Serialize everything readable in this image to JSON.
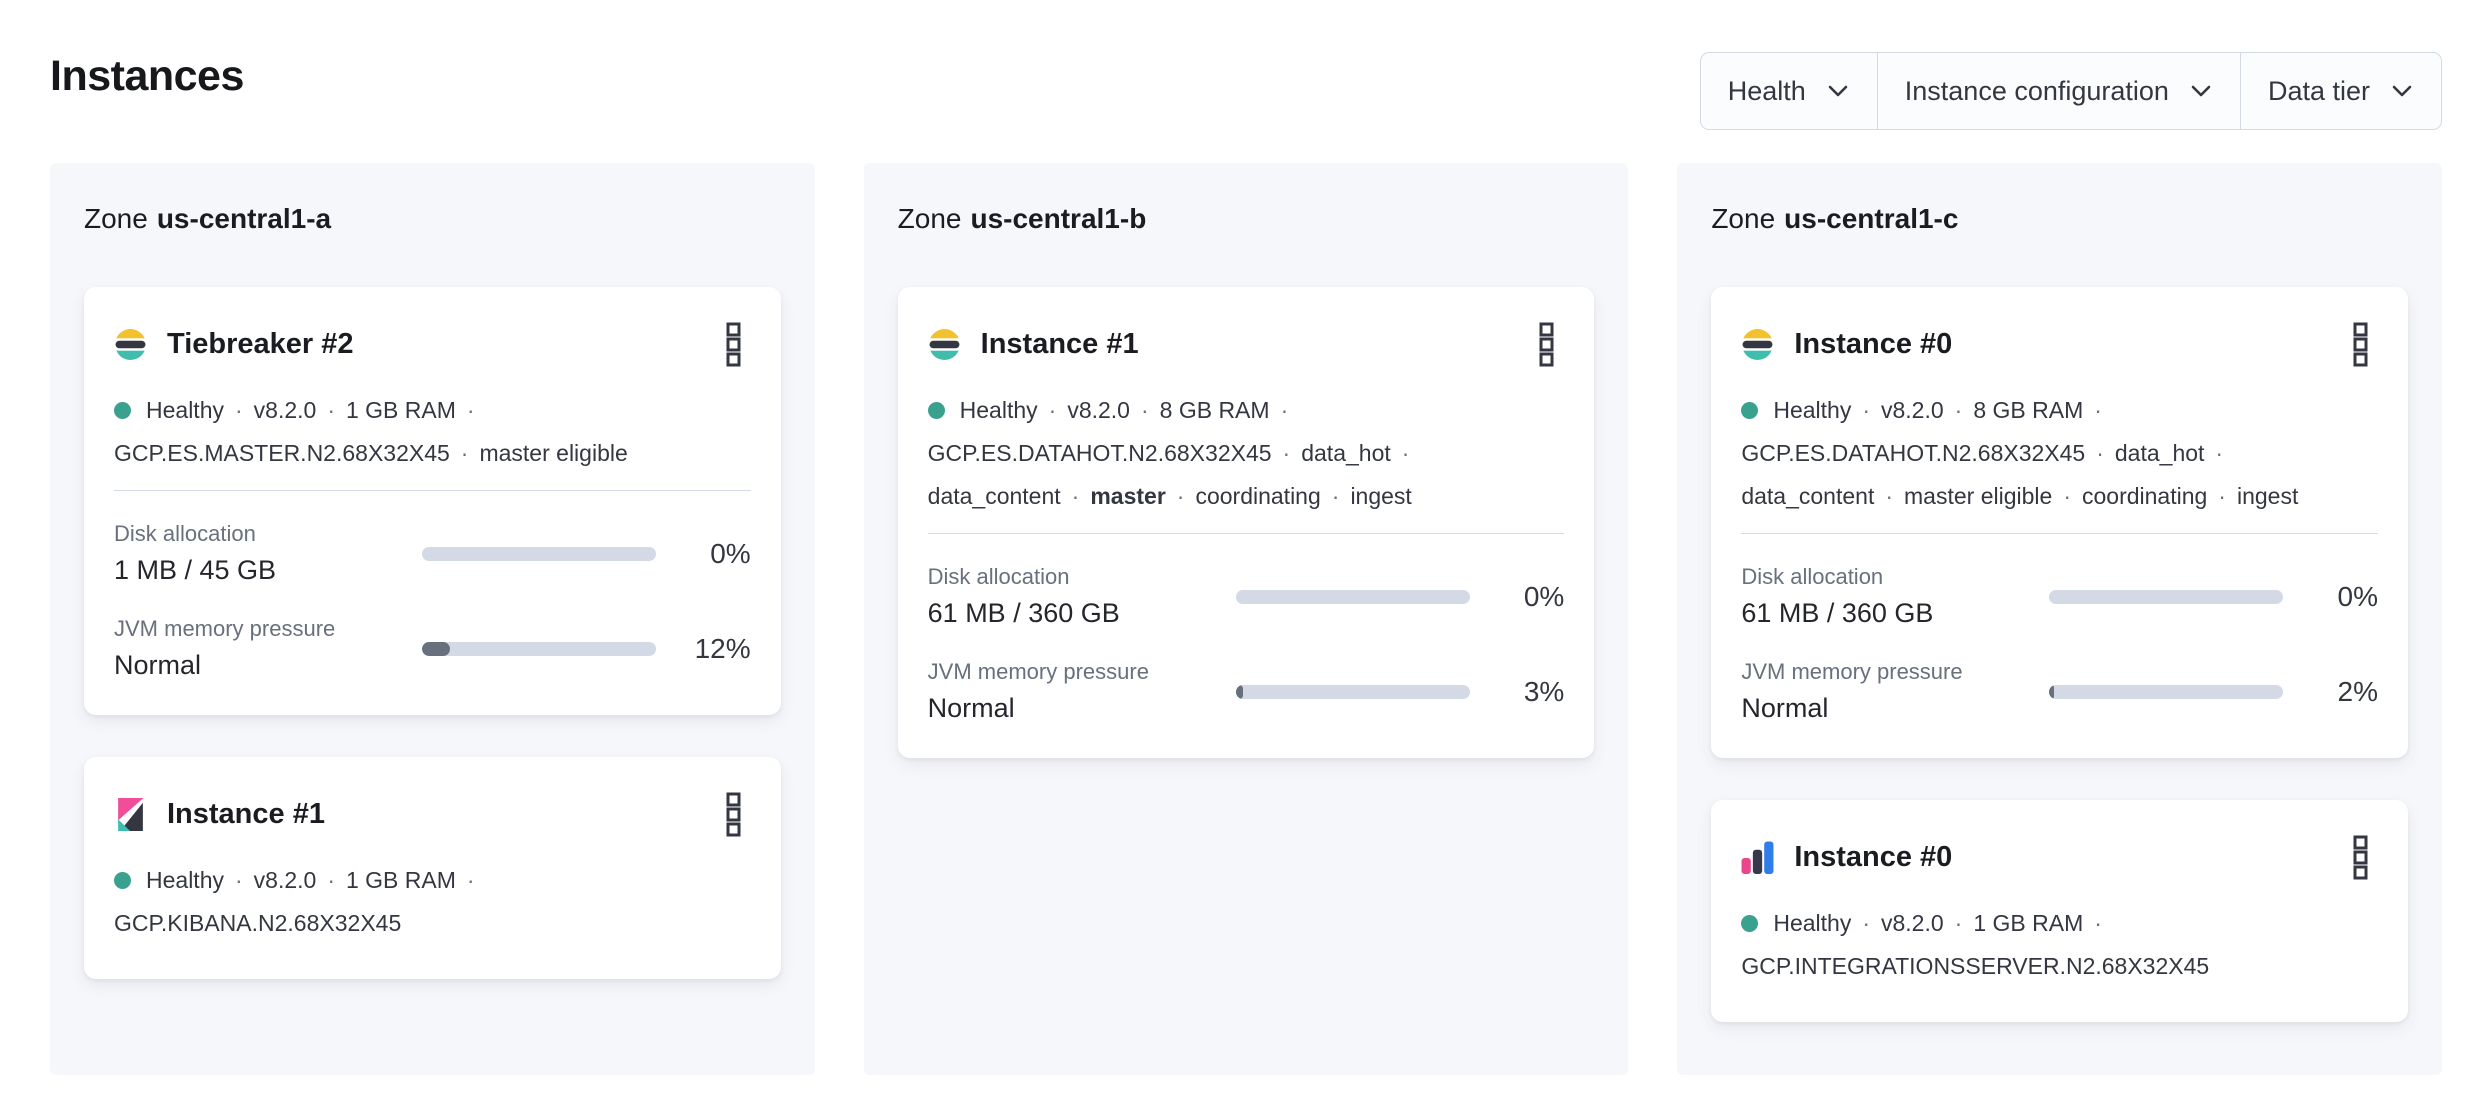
{
  "page": {
    "title": "Instances"
  },
  "separator": "·",
  "zone_word": "Zone",
  "filters": {
    "health": "Health",
    "instance_configuration": "Instance configuration",
    "data_tier": "Data tier"
  },
  "colors": {
    "health_dot": "#3ba18f",
    "bar_track": "#d3dae6",
    "bar_fill": "#69707d",
    "es_yellow": "#f2c12e",
    "es_dark": "#343741",
    "es_teal": "#41bdae",
    "kibana_pink": "#f04e98",
    "kibana_dark": "#343741",
    "kibana_teal": "#3ebeb0",
    "integrations_pink": "#e8488b",
    "integrations_dark": "#36384b",
    "integrations_blue": "#2e7de9"
  },
  "zones": [
    {
      "name": "us-central1-a",
      "cards": [
        {
          "logo": "elasticsearch",
          "title": "Tiebreaker #2",
          "status_lines": [
            [
              "Healthy",
              "v8.2.0",
              "1 GB RAM"
            ],
            [
              "GCP.ES.MASTER.N2.68X32X45",
              "master eligible"
            ]
          ],
          "metrics": [
            {
              "label": "Disk allocation",
              "value": "1 MB / 45 GB",
              "percent": "0%",
              "fill": 0
            },
            {
              "label": "JVM memory pressure",
              "value": "Normal",
              "percent": "12%",
              "fill": 12
            }
          ]
        },
        {
          "logo": "kibana",
          "title": "Instance #1",
          "status_lines": [
            [
              "Healthy",
              "v8.2.0",
              "1 GB RAM"
            ],
            [
              "GCP.KIBANA.N2.68X32X45"
            ]
          ]
        }
      ]
    },
    {
      "name": "us-central1-b",
      "cards": [
        {
          "logo": "elasticsearch",
          "title": "Instance #1",
          "status_lines": [
            [
              "Healthy",
              "v8.2.0",
              "8 GB RAM"
            ],
            [
              "GCP.ES.DATAHOT.N2.68X32X45",
              "data_hot"
            ],
            [
              "data_content",
              "master",
              "coordinating",
              "ingest"
            ]
          ],
          "metrics": [
            {
              "label": "Disk allocation",
              "value": "61 MB / 360 GB",
              "percent": "0%",
              "fill": 0
            },
            {
              "label": "JVM memory pressure",
              "value": "Normal",
              "percent": "3%",
              "fill": 3
            }
          ]
        }
      ]
    },
    {
      "name": "us-central1-c",
      "cards": [
        {
          "logo": "elasticsearch",
          "title": "Instance #0",
          "status_lines": [
            [
              "Healthy",
              "v8.2.0",
              "8 GB RAM"
            ],
            [
              "GCP.ES.DATAHOT.N2.68X32X45",
              "data_hot"
            ],
            [
              "data_content",
              "master eligible",
              "coordinating",
              "ingest"
            ]
          ],
          "metrics": [
            {
              "label": "Disk allocation",
              "value": "61 MB / 360 GB",
              "percent": "0%",
              "fill": 0
            },
            {
              "label": "JVM memory pressure",
              "value": "Normal",
              "percent": "2%",
              "fill": 2
            }
          ]
        },
        {
          "logo": "integrations-server",
          "title": "Instance #0",
          "status_lines": [
            [
              "Healthy",
              "v8.2.0",
              "1 GB RAM"
            ],
            [
              "GCP.INTEGRATIONSSERVER.N2.68X32X45"
            ]
          ]
        }
      ]
    }
  ]
}
